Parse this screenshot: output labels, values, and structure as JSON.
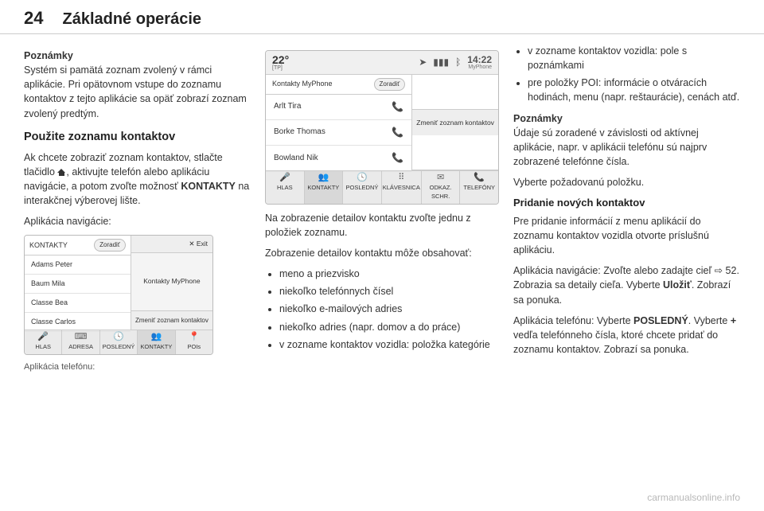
{
  "header": {
    "page_number": "24",
    "title": "Základné operácie"
  },
  "col1": {
    "note_label": "Poznámky",
    "note_text": "Systém si pamätá zoznam zvolený v rámci aplikácie. Pri opätovnom vstupe do zoznamu kontaktov z tejto aplikácie sa opäť zobrazí zoznam zvolený predtým.",
    "h3": "Použite zoznamu kontaktov",
    "p1_a": "Ak chcete zobraziť zoznam kontaktov, stlačte tlačidlo ",
    "p1_b": ", aktivujte telefón alebo aplikáciu navigácie, a potom zvoľte možnosť ",
    "p1_kontakty": "KONTAKTY",
    "p1_c": " na interakčnej výberovej lište.",
    "p2": "Aplikácia navigácie:",
    "nav_shot": {
      "header_title": "KONTAKTY",
      "sort": "Zoradiť",
      "items": [
        "Adams Peter",
        "Baum Mila",
        "Classe Bea",
        "Classe Carlos"
      ],
      "exit": "✕ Exit",
      "right_label": "Kontakty MyPhone",
      "change": "Zmeniť zoznam kontaktov",
      "tabs": [
        {
          "label": "HLAS",
          "icon": "🎤"
        },
        {
          "label": "ADRESA",
          "icon": "⌨"
        },
        {
          "label": "POSLEDNÝ",
          "icon": "🕓"
        },
        {
          "label": "KONTAKTY",
          "icon": "👥"
        },
        {
          "label": "POIs",
          "icon": "📍"
        }
      ]
    },
    "caption": "Aplikácia telefónu:"
  },
  "col2": {
    "phone_shot": {
      "temp": "22°",
      "tp": "[TP]",
      "time": "14:22",
      "time_src": "MyPhone",
      "header_title": "Kontakty MyPhone",
      "sort": "Zoradiť",
      "contacts": [
        "Arlt Tira",
        "Borke Thomas",
        "Bowland Nik"
      ],
      "change": "Zmeniť zoznam kontaktov",
      "tabs": [
        {
          "label": "HLAS",
          "icon": "🎤"
        },
        {
          "label": "KONTAKTY",
          "icon": "👥"
        },
        {
          "label": "POSLEDNÝ",
          "icon": "🕓"
        },
        {
          "label": "KLÁVESNICA",
          "icon": "⠿"
        },
        {
          "label": "ODKAZ. SCHR.",
          "icon": "✉"
        },
        {
          "label": "TELEFÓNY",
          "icon": "📞"
        }
      ]
    },
    "p1": "Na zobrazenie detailov kontaktu zvoľte jednu z položiek zoznamu.",
    "p2": "Zobrazenie detailov kontaktu môže obsahovať:",
    "bullets": [
      "meno a priezvisko",
      "niekoľko telefónnych čísel",
      "niekoľko e-mailových adries",
      "niekoľko adries (napr. domov a do práce)",
      "v zozname kontaktov vozidla: položka kategórie"
    ]
  },
  "col3": {
    "bullets": [
      "v zozname kontaktov vozidla: pole s poznámkami",
      "pre položky POI: informácie o otváracích hodinách, menu (napr. reštaurácie), cenách atď."
    ],
    "note_label": "Poznámky",
    "note_text": "Údaje sú zoradené v závislosti od aktívnej aplikácie, napr. v aplikácii telefónu sú najprv zobrazené telefónne čísla.",
    "p_select": "Vyberte požadovanú položku.",
    "h4": "Pridanie nových kontaktov",
    "p_add": "Pre pridanie informácií z menu aplikácií do zoznamu kontaktov vozidla otvorte príslušnú aplikáciu.",
    "nav_a": "Aplikácia navigácie: Zvoľte alebo zadajte cieľ ",
    "nav_ref": "⇨ 52",
    "nav_b": ". Zobrazia sa detaily cieľa. Vyberte ",
    "nav_save": "Uložiť",
    "nav_c": ". Zobrazí sa ponuka.",
    "tel_a": "Aplikácia telefónu: Vyberte ",
    "tel_recent": "POSLEDNÝ",
    "tel_b": ". Vyberte ",
    "tel_plus": "+",
    "tel_c": " vedľa telefónneho čísla, ktoré chcete pridať do zoznamu kontaktov. Zobrazí sa ponuka."
  },
  "watermark": "carmanualsonline.info"
}
